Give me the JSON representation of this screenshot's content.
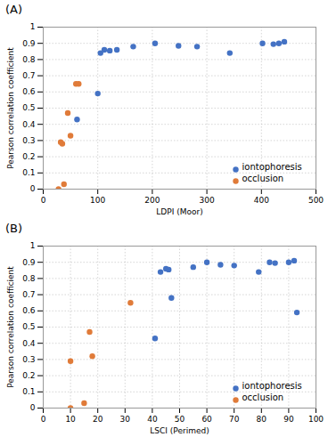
{
  "chart_data": [
    {
      "type": "scatter",
      "title": "(A)",
      "xlabel": "LDPI (Moor)",
      "ylabel": "Pearson correlation coefficient",
      "xlim": [
        0,
        500
      ],
      "ylim": [
        0,
        1
      ],
      "xticks": [
        0,
        100,
        200,
        300,
        400,
        500
      ],
      "yticks": [
        0,
        0.1,
        0.2,
        0.3,
        0.4,
        0.5,
        0.6,
        0.7,
        0.8,
        0.9,
        1
      ],
      "grid": true,
      "legend": "lower right",
      "series": [
        {
          "name": "iontophoresis",
          "color": "#4472c4",
          "x": [
            62,
            100,
            105,
            112,
            122,
            135,
            165,
            205,
            248,
            282,
            342,
            402,
            422,
            432,
            442
          ],
          "values": [
            0.43,
            0.59,
            0.84,
            0.86,
            0.855,
            0.86,
            0.88,
            0.9,
            0.885,
            0.88,
            0.84,
            0.9,
            0.895,
            0.9,
            0.91
          ]
        },
        {
          "name": "occlusion",
          "color": "#e07b39",
          "x": [
            28,
            32,
            35,
            38,
            45,
            50,
            60,
            65
          ],
          "values": [
            0.0,
            0.29,
            0.28,
            0.03,
            0.47,
            0.33,
            0.65,
            0.65
          ]
        }
      ]
    },
    {
      "type": "scatter",
      "title": "(B)",
      "xlabel": "LSCI (Perimed)",
      "ylabel": "Pearson correlation coefficient",
      "xlim": [
        0,
        100
      ],
      "ylim": [
        0,
        1
      ],
      "xticks": [
        0,
        10,
        20,
        30,
        40,
        50,
        60,
        70,
        80,
        90,
        100
      ],
      "yticks": [
        0,
        0.1,
        0.2,
        0.3,
        0.4,
        0.5,
        0.6,
        0.7,
        0.8,
        0.9,
        1
      ],
      "grid": true,
      "legend": "lower right",
      "series": [
        {
          "name": "iontophoresis",
          "color": "#4472c4",
          "x": [
            41,
            43,
            45,
            46,
            47,
            55,
            60,
            65,
            70,
            79,
            83,
            85,
            90,
            92,
            93
          ],
          "values": [
            0.43,
            0.84,
            0.86,
            0.855,
            0.68,
            0.87,
            0.9,
            0.885,
            0.88,
            0.84,
            0.9,
            0.895,
            0.9,
            0.91,
            0.59
          ]
        },
        {
          "name": "occlusion",
          "color": "#e07b39",
          "x": [
            10,
            10,
            15,
            17,
            18,
            32
          ],
          "values": [
            0.0,
            0.29,
            0.03,
            0.47,
            0.32,
            0.65
          ]
        }
      ]
    }
  ]
}
